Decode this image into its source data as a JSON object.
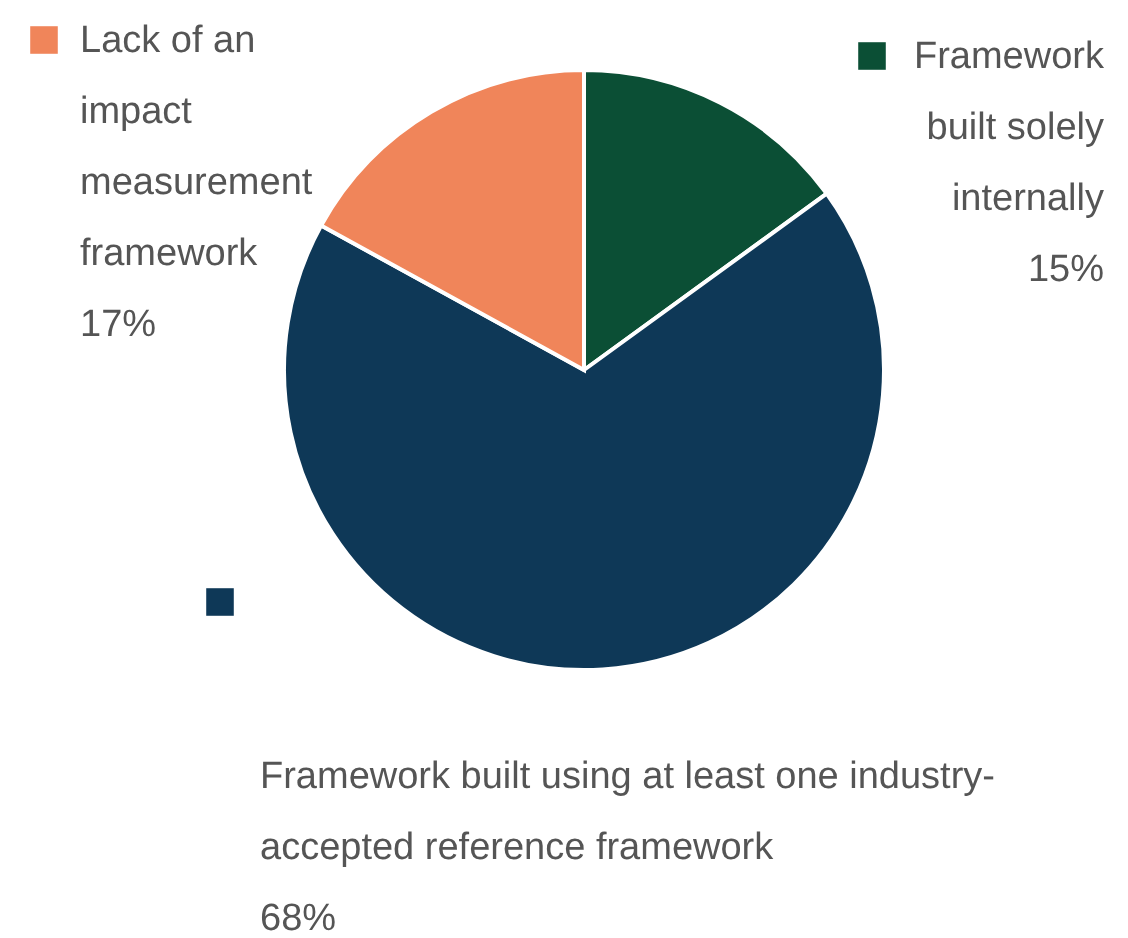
{
  "chart_data": {
    "type": "pie",
    "categories": [
      "Framework built solely internally",
      "Framework built using at least one industry-accepted reference framework",
      "Lack of an impact measurement framework"
    ],
    "values": [
      15,
      68,
      17
    ],
    "colors": [
      "#0b4f35",
      "#0e3857",
      "#f0855a"
    ],
    "value_labels": [
      "15%",
      "68%",
      "17%"
    ],
    "legend": "top"
  }
}
